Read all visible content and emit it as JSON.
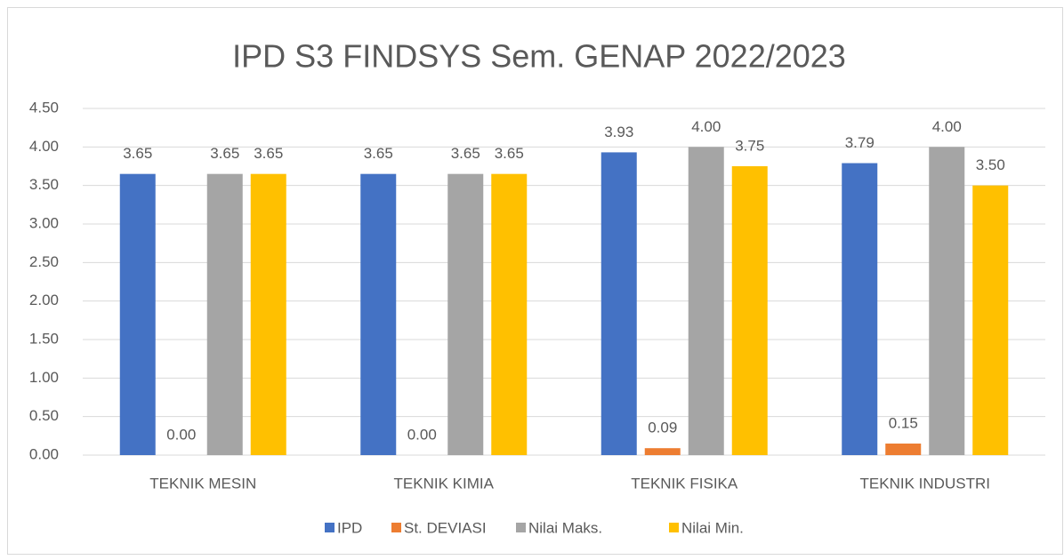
{
  "chart_data": {
    "type": "bar",
    "title": "IPD S3 FINDSYS Sem. GENAP 2022/2023",
    "categories": [
      "TEKNIK MESIN",
      "TEKNIK KIMIA",
      "TEKNIK FISIKA",
      "TEKNIK INDUSTRI"
    ],
    "series": [
      {
        "name": "IPD",
        "color": "#4472c4",
        "values": [
          3.65,
          3.65,
          3.93,
          3.79
        ],
        "value_labels": [
          "3.65",
          "3.65",
          "3.93",
          "3.79"
        ]
      },
      {
        "name": "St. DEVIASI",
        "color": "#ed7d31",
        "values": [
          0,
          0,
          0.09,
          0.15
        ],
        "value_labels": [
          "0.00",
          "0.00",
          "0.09",
          "0.15"
        ]
      },
      {
        "name": "Nilai Maks.",
        "color": "#a5a5a5",
        "values": [
          3.65,
          3.65,
          4,
          4
        ],
        "value_labels": [
          "3.65",
          "3.65",
          "4.00",
          "4.00"
        ]
      },
      {
        "name": "Nilai Min.",
        "color": "#ffc000",
        "values": [
          3.65,
          3.65,
          3.75,
          3.5
        ],
        "value_labels": [
          "3.65",
          "3.65",
          "3.75",
          "3.50"
        ]
      }
    ],
    "ylim": [
      0,
      4.5
    ],
    "yticks": [
      {
        "value": 0,
        "label": "0.00"
      },
      {
        "value": 0.5,
        "label": "0.50"
      },
      {
        "value": 1,
        "label": "1.00"
      },
      {
        "value": 1.5,
        "label": "1.50"
      },
      {
        "value": 2,
        "label": "2.00"
      },
      {
        "value": 2.5,
        "label": "2.50"
      },
      {
        "value": 3,
        "label": "3.00"
      },
      {
        "value": 3.5,
        "label": "3.50"
      },
      {
        "value": 4,
        "label": "4.00"
      },
      {
        "value": 4.5,
        "label": "4.50"
      }
    ],
    "grid": true,
    "legend": "bottom"
  }
}
